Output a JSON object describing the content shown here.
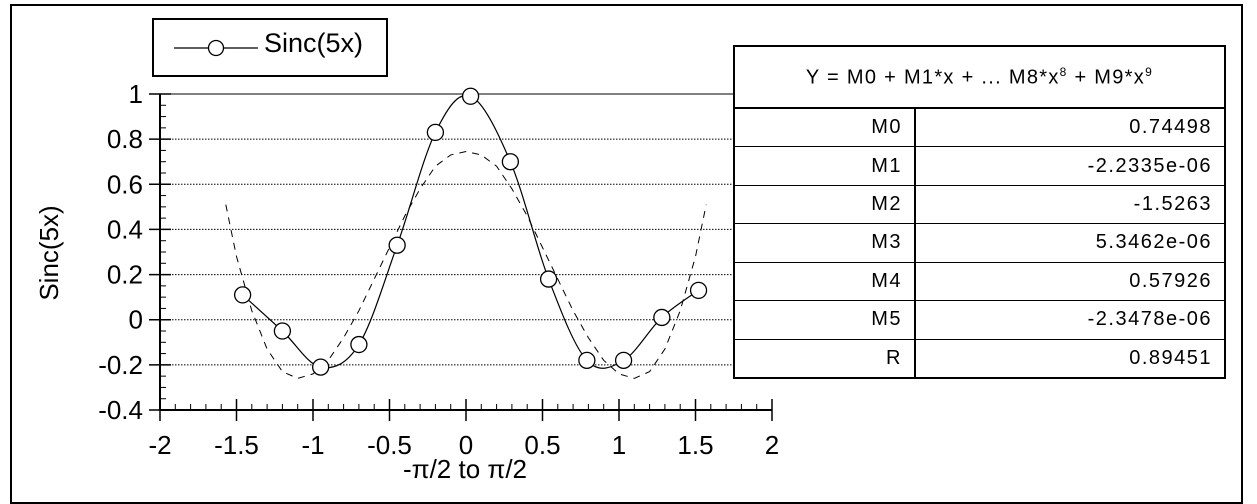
{
  "chart_data": {
    "type": "line",
    "title": "",
    "xlabel": "-π/2 to π/2",
    "ylabel": "Sinc(5x)",
    "xlim": [
      -2,
      2
    ],
    "ylim": [
      -0.4,
      1
    ],
    "x_ticks": [
      "-2",
      "-1.5",
      "-1",
      "-0.5",
      "0",
      "0.5",
      "1",
      "1.5",
      "2"
    ],
    "y_ticks": [
      "1",
      "0.8",
      "0.6",
      "0.4",
      "0.2",
      "0",
      "-0.2",
      "-0.4"
    ],
    "grid": "horizontal-dotted",
    "legend": {
      "position": "top-left",
      "entries": [
        "Sinc(5x)"
      ]
    },
    "series": [
      {
        "name": "Sinc(5x)",
        "style": "solid-with-circle-markers",
        "x": [
          -1.46,
          -1.2,
          -0.95,
          -0.7,
          -0.45,
          -0.2,
          0.03,
          0.29,
          0.54,
          0.79,
          1.03,
          1.28,
          1.52
        ],
        "y": [
          0.11,
          -0.05,
          -0.21,
          -0.11,
          0.33,
          0.83,
          0.99,
          0.7,
          0.18,
          -0.18,
          -0.18,
          0.01,
          0.13
        ]
      },
      {
        "name": "",
        "style": "dashed",
        "x": [
          -1.57,
          -1.5,
          -1.4,
          -1.3,
          -1.2,
          -1.1,
          -1.0,
          -0.9,
          -0.8,
          -0.7,
          -0.6,
          -0.5,
          -0.4,
          -0.3,
          -0.2,
          -0.1,
          0,
          0.1,
          0.2,
          0.3,
          0.4,
          0.5,
          0.6,
          0.7,
          0.8,
          0.9,
          1.0,
          1.1,
          1.2,
          1.3,
          1.4,
          1.5,
          1.57
        ],
        "y": [
          0.51,
          0.28,
          0.04,
          -0.13,
          -0.23,
          -0.26,
          -0.24,
          -0.18,
          -0.08,
          0.04,
          0.18,
          0.32,
          0.46,
          0.58,
          0.68,
          0.73,
          0.745,
          0.73,
          0.68,
          0.58,
          0.46,
          0.32,
          0.18,
          0.04,
          -0.08,
          -0.18,
          -0.24,
          -0.26,
          -0.23,
          -0.13,
          0.04,
          0.28,
          0.51
        ]
      }
    ]
  },
  "fit_table": {
    "header": "Y = M0 + M1*x + ... M8*x",
    "header_exp1": "8",
    "header_tail": " + M9*x",
    "header_exp2": "9",
    "rows": [
      {
        "name": "M0",
        "value": "0.74498"
      },
      {
        "name": "M1",
        "value": "-2.2335e-06"
      },
      {
        "name": "M2",
        "value": "-1.5263"
      },
      {
        "name": "M3",
        "value": "5.3462e-06"
      },
      {
        "name": "M4",
        "value": "0.57926"
      },
      {
        "name": "M5",
        "value": "-2.3478e-06"
      },
      {
        "name": "R",
        "value": "0.89451"
      }
    ]
  }
}
